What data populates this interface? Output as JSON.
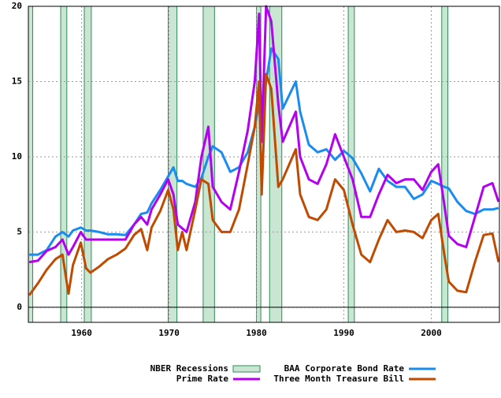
{
  "chart_data": {
    "type": "line",
    "x": [
      1954,
      1955,
      1956,
      1957,
      1957.8,
      1958.5,
      1959,
      1959.9,
      1960.5,
      1961,
      1962,
      1963,
      1964,
      1965,
      1966,
      1966.8,
      1967.5,
      1968,
      1969,
      1969.9,
      1970.5,
      1971,
      1971.5,
      1972,
      1973,
      1973.7,
      1974.5,
      1975,
      1976,
      1977,
      1978,
      1979,
      1979.8,
      1980.3,
      1980.6,
      1981.1,
      1981.7,
      1982.5,
      1983,
      1984.5,
      1985,
      1986,
      1987,
      1988,
      1989,
      1990,
      1991,
      1992,
      1993,
      1994,
      1995,
      1996,
      1997,
      1998,
      1999,
      2000,
      2000.8,
      2001.5,
      2002,
      2003,
      2004,
      2005,
      2006,
      2007,
      2007.7
    ],
    "series": [
      {
        "name": "BAA Corporate Bond Rate",
        "color": "#1a8cf0",
        "values": [
          3.5,
          3.5,
          3.8,
          4.7,
          5.0,
          4.7,
          5.1,
          5.3,
          5.1,
          5.1,
          5.0,
          4.85,
          4.85,
          4.8,
          5.5,
          6.2,
          6.3,
          6.9,
          7.8,
          8.7,
          9.3,
          8.4,
          8.4,
          8.2,
          8.0,
          8.6,
          10.0,
          10.7,
          10.3,
          9.0,
          9.3,
          10.3,
          12.0,
          13.5,
          13.0,
          15.0,
          17.2,
          16.5,
          13.2,
          15.0,
          13.0,
          10.8,
          10.3,
          10.5,
          9.8,
          10.4,
          9.9,
          8.9,
          7.7,
          9.2,
          8.4,
          8.0,
          8.0,
          7.2,
          7.5,
          8.4,
          8.2,
          8.0,
          7.9,
          7.0,
          6.4,
          6.2,
          6.5,
          6.5,
          6.6
        ]
      },
      {
        "name": "Prime Rate",
        "color": "#b400f0",
        "values": [
          3.0,
          3.1,
          3.75,
          4.0,
          4.5,
          3.5,
          4.0,
          5.0,
          4.5,
          4.5,
          4.5,
          4.5,
          4.5,
          4.5,
          5.5,
          6.0,
          5.5,
          6.5,
          7.5,
          8.5,
          7.5,
          5.5,
          5.25,
          5.0,
          7.0,
          10.0,
          12.0,
          8.0,
          7.0,
          6.5,
          9.0,
          11.75,
          15.0,
          19.5,
          11.0,
          20.0,
          19.0,
          13.5,
          11.0,
          13.0,
          10.0,
          8.5,
          8.2,
          9.5,
          11.5,
          10.0,
          8.5,
          6.0,
          6.0,
          7.5,
          8.8,
          8.25,
          8.5,
          8.5,
          7.8,
          9.0,
          9.5,
          6.8,
          4.75,
          4.2,
          4.0,
          6.0,
          8.0,
          8.25,
          7.0
        ]
      },
      {
        "name": "Three Month Treasure Bill",
        "color": "#c04b00",
        "values": [
          0.8,
          1.6,
          2.5,
          3.2,
          3.5,
          0.9,
          2.8,
          4.3,
          2.6,
          2.3,
          2.7,
          3.2,
          3.5,
          3.9,
          4.8,
          5.2,
          3.8,
          5.3,
          6.4,
          7.8,
          6.5,
          3.8,
          5.0,
          3.8,
          6.5,
          8.5,
          8.2,
          5.8,
          5.0,
          5.0,
          6.5,
          9.5,
          12.0,
          15.0,
          7.5,
          15.5,
          14.5,
          8.0,
          8.5,
          10.5,
          7.5,
          6.0,
          5.8,
          6.5,
          8.5,
          7.8,
          5.5,
          3.5,
          3.0,
          4.5,
          5.8,
          5.0,
          5.1,
          5.0,
          4.6,
          5.8,
          6.2,
          3.5,
          1.7,
          1.1,
          1.0,
          3.0,
          4.8,
          4.9,
          3.0
        ]
      }
    ],
    "recessions": {
      "name": "NBER Recessions",
      "color": "#c8e6d2",
      "edge": "#2e8b57",
      "periods": [
        [
          1953.9,
          1954.4
        ],
        [
          1957.6,
          1958.3
        ],
        [
          1960.3,
          1961.1
        ],
        [
          1969.9,
          1970.9
        ],
        [
          1973.9,
          1975.2
        ],
        [
          1980.0,
          1980.5
        ],
        [
          1981.5,
          1982.9
        ],
        [
          1990.5,
          1991.2
        ],
        [
          2001.2,
          2001.9
        ]
      ]
    },
    "xlim": [
      1953.9,
      2007.8
    ],
    "ylim": [
      -1,
      20
    ],
    "xticks": [
      1960,
      1970,
      1980,
      1990,
      2000
    ],
    "yticks": [
      0,
      5,
      10,
      15,
      20
    ],
    "grid": true
  }
}
